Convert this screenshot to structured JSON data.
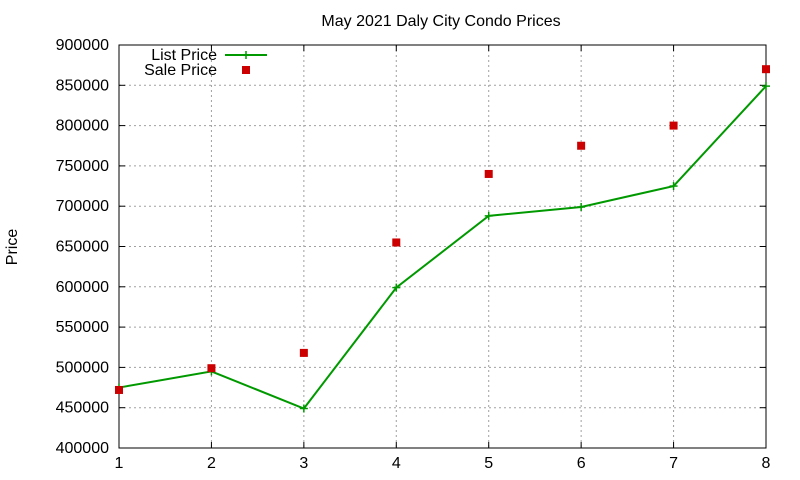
{
  "chart_data": {
    "type": "line",
    "title": "May 2021 Daly City Condo Prices",
    "xlabel": "",
    "ylabel": "Price",
    "x": [
      1,
      2,
      3,
      4,
      5,
      6,
      7,
      8
    ],
    "xlim": [
      1,
      8
    ],
    "ylim": [
      400000,
      900000
    ],
    "xticks": [
      "1",
      "2",
      "3",
      "4",
      "5",
      "6",
      "7",
      "8"
    ],
    "yticks": [
      "400000",
      "450000",
      "500000",
      "550000",
      "600000",
      "650000",
      "700000",
      "750000",
      "800000",
      "850000",
      "900000"
    ],
    "grid": true,
    "legend_position": "top-left",
    "series": [
      {
        "name": "List Price",
        "style": "line-with-plus-markers",
        "color": "#009900",
        "values": [
          475000,
          495000,
          449000,
          599000,
          688000,
          699000,
          725000,
          849000
        ]
      },
      {
        "name": "Sale Price",
        "style": "square-markers",
        "color": "#cc0000",
        "values": [
          472000,
          499000,
          518000,
          655000,
          740000,
          775000,
          800000,
          870000
        ]
      }
    ]
  }
}
